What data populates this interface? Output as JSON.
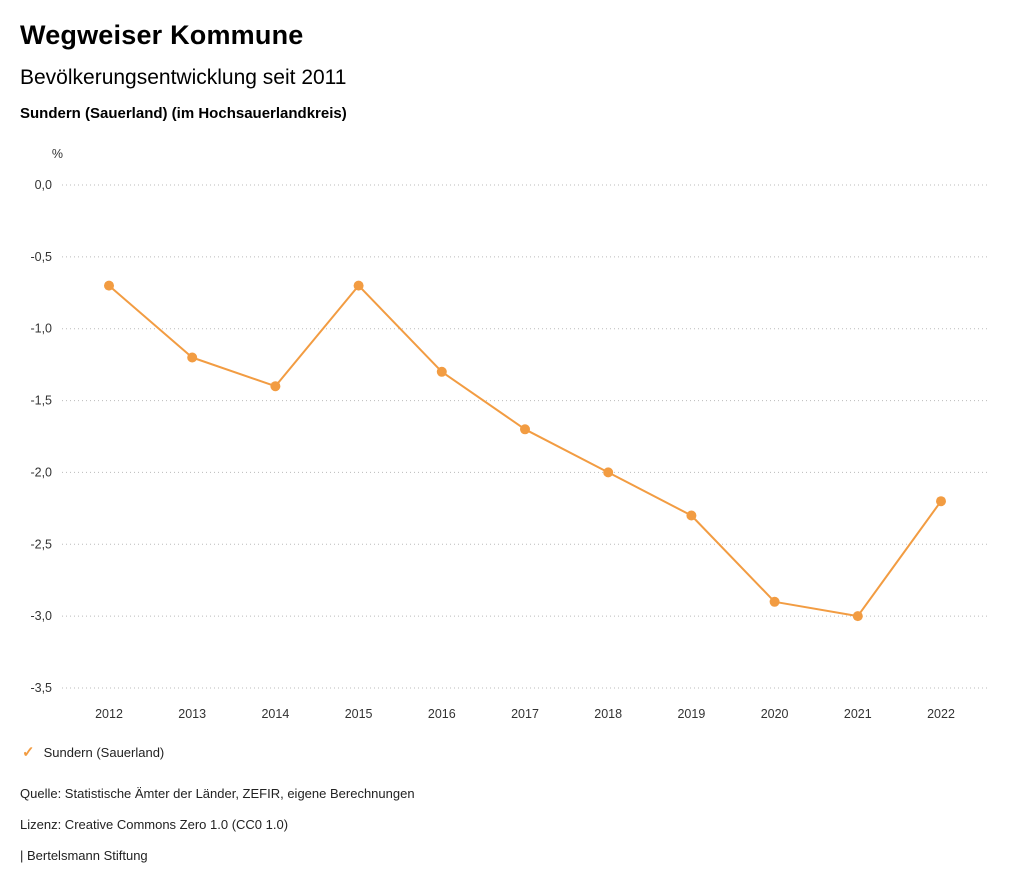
{
  "header": {
    "title": "Wegweiser Kommune",
    "subtitle": "Bevölkerungsentwicklung seit 2011",
    "location": "Sundern (Sauerland) (im Hochsauerlandkreis)"
  },
  "chart_data": {
    "type": "line",
    "title": "Bevölkerungsentwicklung seit 2011",
    "unit_label": "%",
    "x": [
      "2012",
      "2013",
      "2014",
      "2015",
      "2016",
      "2017",
      "2018",
      "2019",
      "2020",
      "2021",
      "2022"
    ],
    "series": [
      {
        "name": "Sundern (Sauerland)",
        "values": [
          -0.7,
          -1.2,
          -1.4,
          -0.7,
          -1.3,
          -1.7,
          -2.0,
          -2.3,
          -2.9,
          -3.0,
          -2.2
        ],
        "color": "#F29C42"
      }
    ],
    "ylim": [
      -3.5,
      0.0
    ],
    "ytick_step": 0.5,
    "ytick_labels": [
      "0,0",
      "-0,5",
      "-1,0",
      "-1,5",
      "-2,0",
      "-2,5",
      "-3,0",
      "-3,5"
    ],
    "grid": "dotted-horizontal",
    "grid_color": "#bbbbbb",
    "axis_text_color": "#333333",
    "legend_position": "bottom-left"
  },
  "legend": {
    "items": [
      {
        "label": "Sundern (Sauerland)",
        "marker": "check",
        "color": "#F29C42"
      }
    ],
    "check_glyph": "✓"
  },
  "footer": {
    "source": "Quelle: Statistische Ämter der Länder, ZEFIR, eigene Berechnungen",
    "license": "Lizenz: Creative Commons Zero 1.0 (CC0 1.0)",
    "attribution": "| Bertelsmann Stiftung"
  }
}
